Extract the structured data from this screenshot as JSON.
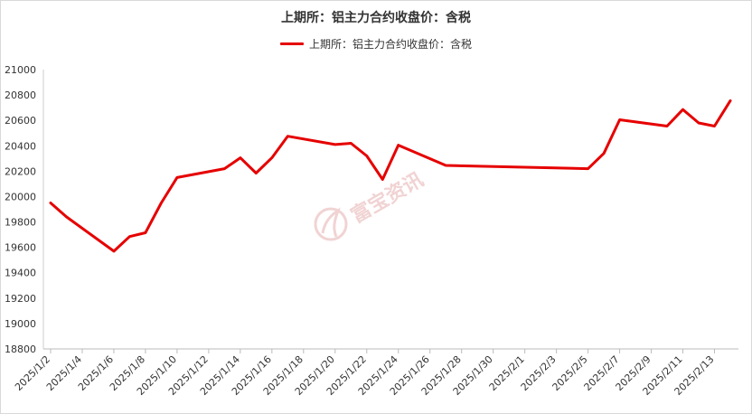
{
  "chart_data": {
    "type": "line",
    "title": "上期所：铝主力合约收盘价：含税",
    "xlabel": "",
    "ylabel": "",
    "ylim": [
      18800,
      21000
    ],
    "yticks": [
      18800,
      19000,
      19200,
      19400,
      19600,
      19800,
      20000,
      20200,
      20400,
      20600,
      20800,
      21000
    ],
    "grid": false,
    "legend_position": "top-center",
    "x_tick_labels": [
      "2025/1/2",
      "2025/1/4",
      "2025/1/6",
      "2025/1/8",
      "2025/1/10",
      "2025/1/12",
      "2025/1/14",
      "2025/1/16",
      "2025/1/18",
      "2025/1/20",
      "2025/1/22",
      "2025/1/24",
      "2025/1/26",
      "2025/1/28",
      "2025/1/30",
      "2025/2/1",
      "2025/2/3",
      "2025/2/5",
      "2025/2/7",
      "2025/2/9",
      "2025/2/11",
      "2025/2/13"
    ],
    "series": [
      {
        "name": "上期所：铝主力合约收盘价：含税",
        "color": "#e60000",
        "points": [
          {
            "x": "2025/1/2",
            "y": 19950
          },
          {
            "x": "2025/1/3",
            "y": 19840
          },
          {
            "x": "2025/1/6",
            "y": 19570
          },
          {
            "x": "2025/1/7",
            "y": 19685
          },
          {
            "x": "2025/1/8",
            "y": 19715
          },
          {
            "x": "2025/1/9",
            "y": 19950
          },
          {
            "x": "2025/1/10",
            "y": 20150
          },
          {
            "x": "2025/1/13",
            "y": 20220
          },
          {
            "x": "2025/1/14",
            "y": 20305
          },
          {
            "x": "2025/1/15",
            "y": 20185
          },
          {
            "x": "2025/1/16",
            "y": 20305
          },
          {
            "x": "2025/1/17",
            "y": 20475
          },
          {
            "x": "2025/1/20",
            "y": 20410
          },
          {
            "x": "2025/1/21",
            "y": 20420
          },
          {
            "x": "2025/1/22",
            "y": 20320
          },
          {
            "x": "2025/1/23",
            "y": 20135
          },
          {
            "x": "2025/1/24",
            "y": 20405
          },
          {
            "x": "2025/1/27",
            "y": 20245
          },
          {
            "x": "2025/2/5",
            "y": 20220
          },
          {
            "x": "2025/2/6",
            "y": 20340
          },
          {
            "x": "2025/2/7",
            "y": 20605
          },
          {
            "x": "2025/2/10",
            "y": 20555
          },
          {
            "x": "2025/2/11",
            "y": 20685
          },
          {
            "x": "2025/2/12",
            "y": 20580
          },
          {
            "x": "2025/2/13",
            "y": 20555
          },
          {
            "x": "2025/2/14",
            "y": 20755
          }
        ]
      }
    ]
  },
  "watermark": {
    "text": "富宝资讯"
  }
}
